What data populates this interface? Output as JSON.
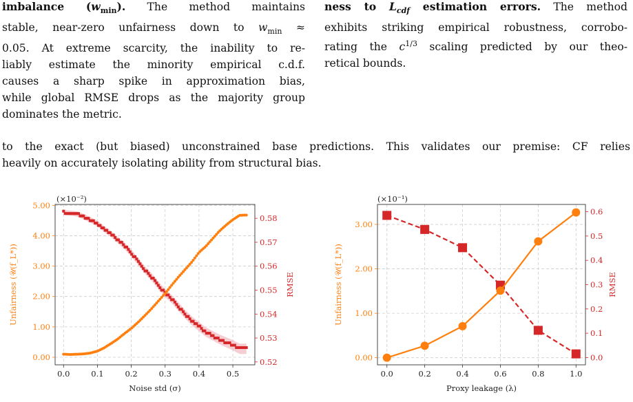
{
  "caption_left": {
    "lines": [
      "imbalance (w_min). The method maintains",
      "stable, near-zero unfairness down to w_min ≈",
      "0.05. At extreme scarcity, the inability to re-",
      "liably estimate the minority empirical c.d.f.",
      "causes a sharp spike in approximation bias,",
      "while global RMSE drops as the majority group",
      "dominates the metric."
    ]
  },
  "caption_right": {
    "lines": [
      "ness to L_cdf estimation errors. The method",
      "exhibits striking empirical robustness, corrobo-",
      "rating the c^{1/3} scaling predicted by our theo-",
      "retical bounds."
    ]
  },
  "body": {
    "line1": "to the exact (but biased) unconstrained base predictions. This validates our premise: CF relies",
    "line2": "heavily on accurately isolating ability from structural bias."
  },
  "colors": {
    "orange": "#ff7f0e",
    "red": "#d62728",
    "band": "#f2b8bf"
  },
  "chart_data": [
    {
      "type": "line",
      "xlabel": "Noise std (σ)",
      "ylabel_left": "Unfairness (𝒰(f_L*))",
      "ylabel_right": "RMSE",
      "left_axis_multiplier": "(×10⁻²)",
      "xlim": [
        -0.025,
        0.565
      ],
      "ylim_left": [
        -0.0025,
        0.0503
      ],
      "ylim_right": [
        0.5188,
        0.5858
      ],
      "xticks": [
        "0.0",
        "0.1",
        "0.2",
        "0.3",
        "0.4",
        "0.5"
      ],
      "yticks_left": [
        "0.00",
        "1.00",
        "2.00",
        "3.00",
        "4.00",
        "5.00"
      ],
      "yticks_right": [
        "0.52",
        "0.53",
        "0.54",
        "0.55",
        "0.56",
        "0.57",
        "0.58"
      ],
      "grid": true,
      "series": [
        {
          "name": "Unfairness",
          "axis": "left",
          "x": [
            0.0,
            0.02,
            0.04,
            0.06,
            0.08,
            0.1,
            0.12,
            0.14,
            0.16,
            0.18,
            0.2,
            0.22,
            0.24,
            0.26,
            0.28,
            0.3,
            0.32,
            0.34,
            0.36,
            0.38,
            0.4,
            0.42,
            0.44,
            0.46,
            0.48,
            0.5,
            0.52,
            0.54
          ],
          "values": [
            0.001,
            0.0009,
            0.001,
            0.0011,
            0.0014,
            0.002,
            0.0031,
            0.0045,
            0.006,
            0.0078,
            0.0095,
            0.0115,
            0.0137,
            0.016,
            0.0185,
            0.021,
            0.0238,
            0.0265,
            0.029,
            0.0315,
            0.0345,
            0.0365,
            0.039,
            0.0415,
            0.0435,
            0.0453,
            0.0467,
            0.0468
          ]
        },
        {
          "name": "RMSE",
          "axis": "right",
          "x": [
            0.0,
            0.02,
            0.04,
            0.06,
            0.08,
            0.1,
            0.12,
            0.14,
            0.16,
            0.18,
            0.2,
            0.22,
            0.24,
            0.26,
            0.28,
            0.3,
            0.32,
            0.34,
            0.36,
            0.38,
            0.4,
            0.42,
            0.44,
            0.46,
            0.48,
            0.5,
            0.52,
            0.54
          ],
          "values": [
            0.5825,
            0.5822,
            0.5818,
            0.5807,
            0.5793,
            0.5778,
            0.5755,
            0.5735,
            0.571,
            0.5685,
            0.5655,
            0.562,
            0.5585,
            0.5555,
            0.552,
            0.5488,
            0.5462,
            0.543,
            0.5398,
            0.537,
            0.5348,
            0.5325,
            0.531,
            0.5295,
            0.5282,
            0.527,
            0.5255,
            0.5255
          ]
        }
      ]
    },
    {
      "type": "line",
      "xlabel": "Proxy leakage (λ)",
      "ylabel_left": "Unfairness (𝒰(f_L*))",
      "ylabel_right": "RMSE",
      "left_axis_multiplier": "(×10⁻¹)",
      "xlim": [
        -0.05,
        1.05
      ],
      "ylim_left": [
        -0.016,
        0.345
      ],
      "ylim_right": [
        -0.03,
        0.63
      ],
      "xticks": [
        "0.0",
        "0.2",
        "0.4",
        "0.6",
        "0.8",
        "1.0"
      ],
      "yticks_left": [
        "0.00",
        "1.00",
        "2.00",
        "3.00"
      ],
      "yticks_right": [
        "0.0",
        "0.1",
        "0.2",
        "0.3",
        "0.4",
        "0.5",
        "0.6"
      ],
      "grid": true,
      "series": [
        {
          "name": "Unfairness",
          "axis": "left",
          "x": [
            0.0,
            0.2,
            0.4,
            0.6,
            0.8,
            1.0
          ],
          "values": [
            0.0,
            0.027,
            0.071,
            0.151,
            0.262,
            0.327
          ]
        },
        {
          "name": "RMSE",
          "axis": "right",
          "x": [
            0.0,
            0.2,
            0.4,
            0.6,
            0.8,
            1.0
          ],
          "values": [
            0.585,
            0.527,
            0.452,
            0.298,
            0.112,
            0.015
          ]
        }
      ]
    }
  ]
}
